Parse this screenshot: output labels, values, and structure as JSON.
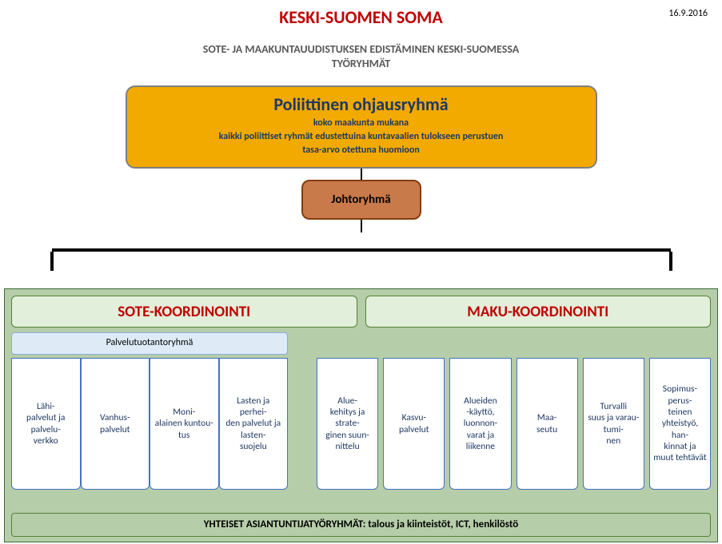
{
  "colors": {
    "title_red": "#c00000",
    "subtitle_gray": "#595959",
    "date_black": "#000000",
    "top_box_fill": "#f2a900",
    "top_box_border": "#7f7f7f",
    "top_box_text": "#1f3864",
    "mid_box_fill": "#c97a4a",
    "mid_box_border": "#843c0c",
    "mid_box_text": "#000000",
    "outer_panel_fill": "#b5cda8",
    "outer_panel_border": "#3a6b3a",
    "coord_head_fill": "#e2efda",
    "coord_head_border": "#548235",
    "coord_head_text": "#c00000",
    "sub_head_fill": "#deebf7",
    "sub_head_border": "#8ea9db",
    "sub_head_text": "#000000",
    "small_box_fill": "#ffffff",
    "small_box_border": "#4472c4",
    "small_box_text": "#1f3864",
    "footer_fill": "#b5cda8",
    "footer_border": "#548235",
    "footer_text": "#000000",
    "connector": "#000000"
  },
  "header": {
    "title": "KESKI-SUOMEN SOMA",
    "date": "16.9.2016",
    "subtitle_l1": "SOTE- JA MAAKUNTAUUDISTUKSEN EDISTÄMINEN KESKI-SUOMESSA",
    "subtitle_l2": "TYÖRYHMÄT"
  },
  "top_box": {
    "title": "Poliittinen ohjausryhmä",
    "line1": "koko maakunta mukana",
    "line2": "kaikki poliittiset ryhmät edustettuina kuntavaalien tulokseen perustuen",
    "line3": "tasa-arvo otettuna huomioon"
  },
  "mid_box": {
    "label": "Johtoryhmä"
  },
  "coord": {
    "left": "SOTE-KOORDINOINTI",
    "right": "MAKU-KOORDINOINTI"
  },
  "sub_head": {
    "label": "Palvelutuotantoryhmä"
  },
  "sote_boxes": [
    "Lähi-\npalvelut ja palvelu-\nverkko",
    "Vanhus-\npalvelut",
    "Moni-\nalainen kuntou-\ntus",
    "Lasten ja perhei-\nden palvelut ja lasten-\nsuojelu"
  ],
  "maku_boxes": [
    "Alue-\nkehitys ja strate-\nginen suun-\nnittelu",
    "Kasvu-\npalvelut",
    "Alueiden\n-käyttö, luonnon-\nvarat ja liikenne",
    "Maa-\nseutu",
    "Turvalli\nsuus ja varau-\ntumi-\nnen",
    "Sopimus-\nperus-\nteinen yhteistyö, han-\nkinnat ja muut tehtävät"
  ],
  "footer": {
    "label": "YHTEISET ASIANTUNTIJATYÖRYHMÄT: talous ja kiinteistöt, ICT, henkilöstö"
  }
}
